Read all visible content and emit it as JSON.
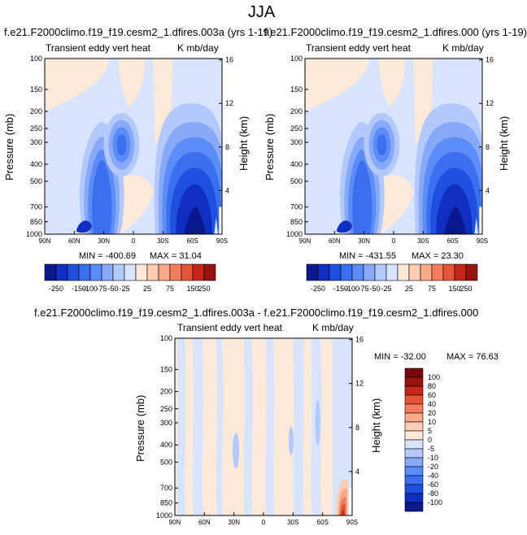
{
  "title": "JJA",
  "colors": {
    "ramp_main": [
      "#0a1a8c",
      "#0f2fc2",
      "#1e50e0",
      "#3c6ff0",
      "#5c8cf5",
      "#86aaf7",
      "#b3c9fb",
      "#d7e4fd",
      "#fde9d9",
      "#fbcdb3",
      "#f7a98a",
      "#f27e5f",
      "#e45535",
      "#c7261a",
      "#96130e"
    ],
    "ramp_diff": [
      "#0a1a8c",
      "#0f2fc2",
      "#1e50e0",
      "#3c6ff0",
      "#5c8cf5",
      "#86aaf7",
      "#b3c9fb",
      "#d7e4fd",
      "#fde9d9",
      "#fbcdb3",
      "#f7a98a",
      "#f27e5f",
      "#e45535",
      "#c7261a",
      "#96130e",
      "#7a0808"
    ]
  },
  "panels": [
    {
      "title": "f.e21.F2000climo.f19_f19.cesm2_1.dfires.003a (yrs 1-19)",
      "left_label": "Transient eddy vert heat",
      "right_label": "K mb/day",
      "ylabel": "Pressure (mb)",
      "ylabel_right": "Height (km)",
      "min_text": "MIN = -400.69",
      "max_text": "MAX = 31.04"
    },
    {
      "title": "f.e21.F2000climo.f19_f19.cesm2_1.dfires.000 (yrs 1-19)",
      "left_label": "Transient eddy vert heat",
      "right_label": "K mb/day",
      "ylabel": "Pressure (mb)",
      "ylabel_right": "Height (km)",
      "min_text": "MIN = -431.55",
      "max_text": "MAX = 23.30"
    },
    {
      "title": "f.e21.F2000climo.f19_f19.cesm2_1.dfires.003a - f.e21.F2000climo.f19_f19.cesm2_1.dfires.000",
      "left_label": "Transient eddy vert heat",
      "right_label": "K mb/day",
      "ylabel": "Pressure (mb)",
      "ylabel_right": "Height (km)",
      "min_text": "MIN = -32.00",
      "max_text": "MAX = 76.63"
    }
  ],
  "chart_data": [
    {
      "type": "heatmap",
      "x_ticks": [
        "90N",
        "60N",
        "30N",
        "0",
        "30S",
        "60S",
        "90S"
      ],
      "y_ticks": [
        "100",
        "150",
        "200",
        "250",
        "300",
        "400",
        "500",
        "700",
        "850",
        "1000"
      ],
      "y_ticks_right": [
        "16",
        "12",
        "8",
        "4"
      ],
      "y_scale": "log-pressure",
      "ylim": [
        1000,
        100
      ],
      "colorbar_levels": [
        "-250",
        "-150",
        "-100",
        "-75",
        "-50",
        "-25",
        "25",
        "75",
        "150",
        "250"
      ],
      "features": [
        {
          "lat": 33,
          "pressure": 420,
          "value": -150
        },
        {
          "lat": 13,
          "pressure": 320,
          "value": -100
        },
        {
          "lat": -63,
          "pressure": 700,
          "value": -400
        }
      ]
    },
    {
      "type": "heatmap",
      "x_ticks": [
        "90N",
        "60N",
        "30N",
        "0",
        "30S",
        "60S",
        "90S"
      ],
      "y_ticks": [
        "100",
        "150",
        "200",
        "250",
        "300",
        "400",
        "500",
        "700",
        "850",
        "1000"
      ],
      "y_ticks_right": [
        "16",
        "12",
        "8",
        "4"
      ],
      "y_scale": "log-pressure",
      "ylim": [
        1000,
        100
      ],
      "colorbar_levels": [
        "-250",
        "-150",
        "-100",
        "-75",
        "-50",
        "-25",
        "25",
        "75",
        "150",
        "250"
      ],
      "features": [
        {
          "lat": 33,
          "pressure": 420,
          "value": -150
        },
        {
          "lat": 13,
          "pressure": 320,
          "value": -100
        },
        {
          "lat": -63,
          "pressure": 700,
          "value": -430
        }
      ]
    },
    {
      "type": "heatmap",
      "x_ticks": [
        "90N",
        "60N",
        "30N",
        "0",
        "30S",
        "60S",
        "90S"
      ],
      "y_ticks": [
        "100",
        "150",
        "200",
        "250",
        "300",
        "400",
        "500",
        "700",
        "850",
        "1000"
      ],
      "y_ticks_right": [
        "16",
        "12",
        "8",
        "4"
      ],
      "y_scale": "log-pressure",
      "ylim": [
        1000,
        100
      ],
      "colorbar_levels": [
        "100",
        "80",
        "60",
        "40",
        "20",
        "10",
        "5",
        "0",
        "-5",
        "-10",
        "-20",
        "-40",
        "-60",
        "-80",
        "-100"
      ],
      "features": [
        {
          "lat": -80,
          "pressure": 800,
          "value": 76
        }
      ]
    }
  ]
}
